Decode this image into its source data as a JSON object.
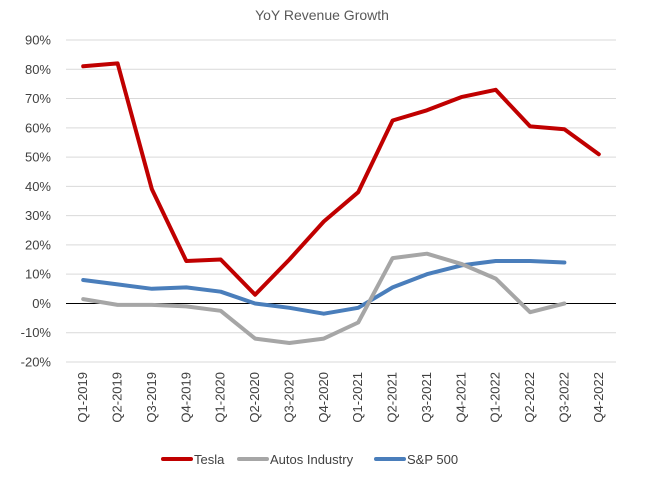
{
  "chart_data": {
    "type": "line",
    "title": "YoY Revenue Growth",
    "categories": [
      "Q1-2019",
      "Q2-2019",
      "Q3-2019",
      "Q4-2019",
      "Q1-2020",
      "Q2-2020",
      "Q3-2020",
      "Q4-2020",
      "Q1-2021",
      "Q2-2021",
      "Q3-2021",
      "Q4-2021",
      "Q1-2022",
      "Q2-2022",
      "Q3-2022",
      "Q4-2022"
    ],
    "y_ticks": [
      "90%",
      "80%",
      "70%",
      "60%",
      "50%",
      "40%",
      "30%",
      "20%",
      "10%",
      "0%",
      "-10%",
      "-20%"
    ],
    "ylim": [
      -20,
      90
    ],
    "grid": true,
    "legend_position": "bottom",
    "series": [
      {
        "name": "Tesla",
        "color": "#c00000",
        "values": [
          81,
          82,
          39,
          14.5,
          15,
          3,
          15,
          28,
          38,
          62.5,
          66,
          70.5,
          73,
          60.5,
          59.5,
          51
        ]
      },
      {
        "name": "Autos Industry",
        "color": "#a6a6a6",
        "values": [
          1.5,
          -0.5,
          -0.5,
          -1,
          -2.5,
          -12,
          -13.5,
          -12,
          -6.5,
          15.5,
          17,
          13.5,
          8.5,
          -3,
          0,
          null
        ]
      },
      {
        "name": "S&P 500",
        "color": "#4a7ebb",
        "values": [
          8,
          6.5,
          5,
          5.5,
          4,
          0,
          -1.5,
          -3.5,
          -1.5,
          5.5,
          10,
          13,
          14.5,
          14.5,
          14,
          null
        ]
      }
    ]
  }
}
